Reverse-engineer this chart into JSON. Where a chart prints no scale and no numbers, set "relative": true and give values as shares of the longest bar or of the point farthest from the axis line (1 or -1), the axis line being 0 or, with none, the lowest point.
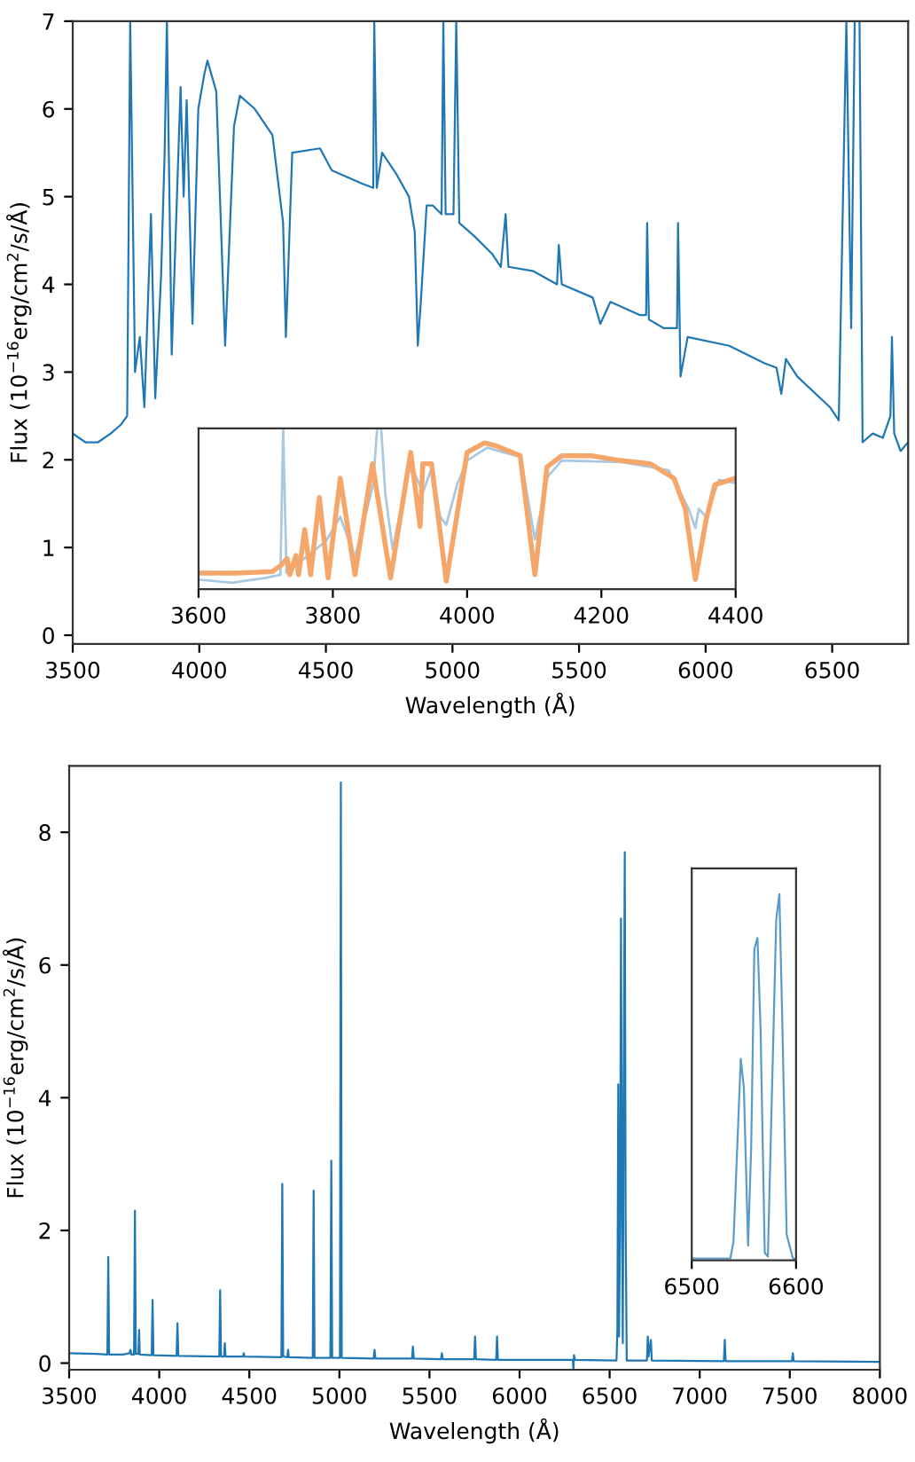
{
  "chart_data": [
    {
      "type": "line",
      "xlabel": "Wavelength (Å)",
      "ylabel": "Flux (10$^{−16}$erg/cm$^{2}$/s/Å)",
      "xlim": [
        3500,
        6800
      ],
      "ylim": [
        -0.1,
        7
      ],
      "xticks": [
        3500,
        4000,
        4500,
        5000,
        5500,
        6000,
        6500
      ],
      "yticks": [
        0,
        1,
        2,
        3,
        4,
        5,
        6,
        7
      ],
      "grid": false,
      "series": [
        {
          "color": "#1f77b4",
          "x": [
            3500,
            3550,
            3600,
            3650,
            3690,
            3715,
            3727,
            3746,
            3765,
            3783,
            3809,
            3826,
            3849,
            3863,
            3872,
            3891,
            3926,
            3938,
            3950,
            3973,
            3996,
            4020,
            4032,
            4067,
            4102,
            4137,
            4160,
            4219,
            4289,
            4331,
            4342,
            4367,
            4477,
            4523,
            4641,
            4687,
            4691,
            4701,
            4722,
            4780,
            4828,
            4851,
            4863,
            4875,
            4898,
            4922,
            4957,
            4964,
            4973,
            5004,
            5015,
            5027,
            5086,
            5156,
            5191,
            5210,
            5221,
            5320,
            5413,
            5420,
            5432,
            5554,
            5584,
            5624,
            5741,
            5765,
            5769,
            5776,
            5835,
            5887,
            5891,
            5901,
            5929,
            6093,
            6233,
            6280,
            6299,
            6317,
            6362,
            6491,
            6526,
            6556,
            6575,
            6589,
            6608,
            6620,
            6660,
            6700,
            6730,
            6736,
            6745,
            6770,
            6800
          ],
          "values": [
            2.3,
            2.2,
            2.2,
            2.3,
            2.4,
            2.5,
            7,
            3.0,
            3.4,
            2.6,
            4.8,
            2.7,
            4.1,
            5.5,
            7,
            3.2,
            6.25,
            5.0,
            6.1,
            3.55,
            6.0,
            6.4,
            6.55,
            6.2,
            3.3,
            5.8,
            6.15,
            6.0,
            5.7,
            4.7,
            3.4,
            5.5,
            5.55,
            5.3,
            5.15,
            5.1,
            7,
            5.1,
            5.5,
            5.25,
            5.0,
            4.6,
            3.3,
            3.8,
            4.9,
            4.9,
            4.8,
            7,
            4.8,
            4.8,
            7,
            4.7,
            4.55,
            4.35,
            4.2,
            4.8,
            4.2,
            4.15,
            4.0,
            4.45,
            4.0,
            3.85,
            3.55,
            3.8,
            3.65,
            3.65,
            4.7,
            3.6,
            3.5,
            3.5,
            4.7,
            2.95,
            3.4,
            3.3,
            3.1,
            3.05,
            2.75,
            3.15,
            2.95,
            2.6,
            2.45,
            7,
            3.5,
            7,
            7,
            2.2,
            2.3,
            2.25,
            2.5,
            3.4,
            2.3,
            2.1,
            2.2
          ]
        }
      ]
    },
    {
      "type": "line",
      "relative": true,
      "xlim": [
        3600,
        4400
      ],
      "xticks": [
        3600,
        3800,
        4000,
        4200,
        4400
      ],
      "tick_labels": "x",
      "grid": false,
      "series": [
        {
          "color": "#a9c9e2",
          "x": [
            3600,
            3650,
            3700,
            3722,
            3726,
            3731,
            3760,
            3790,
            3811,
            3833,
            3860,
            3866,
            3872,
            3878,
            3889,
            3916,
            3934,
            3947,
            3960,
            3969,
            3985,
            4000,
            4030,
            4080,
            4101,
            4120,
            4141,
            4230,
            4300,
            4330,
            4340,
            4345,
            4356,
            4375,
            4400
          ],
          "values": [
            0.06,
            0.04,
            0.07,
            0.09,
            1.0,
            0.1,
            0.2,
            0.3,
            0.45,
            0.2,
            0.65,
            1.0,
            1.0,
            0.6,
            0.25,
            0.78,
            0.6,
            0.75,
            0.45,
            0.4,
            0.65,
            0.8,
            0.88,
            0.82,
            0.31,
            0.7,
            0.8,
            0.79,
            0.74,
            0.5,
            0.38,
            0.5,
            0.45,
            0.68,
            0.66
          ]
        },
        {
          "color": "#f5a66a",
          "x": [
            3600,
            3657,
            3710,
            3723,
            3732,
            3736,
            3745,
            3749,
            3758,
            3767,
            3780,
            3793,
            3811,
            3833,
            3859,
            3886,
            3916,
            3930,
            3934,
            3947,
            3969,
            4000,
            4026,
            4044,
            4079,
            4101,
            4119,
            4141,
            4185,
            4229,
            4273,
            4308,
            4325,
            4340,
            4356,
            4369,
            4400
          ],
          "values": [
            0.1,
            0.1,
            0.11,
            0.15,
            0.19,
            0.09,
            0.21,
            0.09,
            0.37,
            0.09,
            0.57,
            0.07,
            0.69,
            0.09,
            0.78,
            0.07,
            0.85,
            0.39,
            0.78,
            0.78,
            0.05,
            0.85,
            0.91,
            0.89,
            0.83,
            0.09,
            0.76,
            0.83,
            0.83,
            0.8,
            0.78,
            0.69,
            0.5,
            0.06,
            0.43,
            0.65,
            0.69
          ]
        }
      ]
    },
    {
      "type": "line",
      "xlabel": "Wavelength (Å)",
      "ylabel": "Flux (10$^{−16}$erg/cm$^{2}$/s/Å)",
      "xlim": [
        3500,
        8000
      ],
      "ylim": [
        -0.1,
        9
      ],
      "xticks": [
        3500,
        4000,
        4500,
        5000,
        5500,
        6000,
        6500,
        7000,
        7500,
        8000
      ],
      "yticks": [
        0,
        2,
        4,
        6,
        8
      ],
      "grid": false,
      "series": [
        {
          "color": "#1f77b4",
          "x": [
            3500,
            3650,
            3712,
            3717,
            3722,
            3800,
            3835,
            3840,
            3845,
            3860,
            3865,
            3870,
            3884,
            3888,
            3892,
            3958,
            3963,
            3968,
            4096,
            4101,
            4106,
            4333,
            4338,
            4343,
            4360,
            4364,
            4368,
            4465,
            4469,
            4473,
            4678,
            4683,
            4688,
            4711,
            4715,
            4719,
            4852,
            4857,
            4862,
            4950,
            4955,
            4960,
            5003,
            5008,
            5013,
            5190,
            5195,
            5200,
            5403,
            5408,
            5413,
            5564,
            5569,
            5574,
            5748,
            5753,
            5758,
            5870,
            5875,
            5880,
            6296,
            6299,
            6302,
            6308,
            6538,
            6543,
            6548,
            6552,
            6558,
            6563,
            6568,
            6573,
            6578,
            6584,
            6589,
            6595,
            6707,
            6712,
            6716,
            6729,
            6734,
            7134,
            7139,
            7144,
            7512,
            7517,
            7522,
            8000
          ],
          "values": [
            0.15,
            0.14,
            0.13,
            1.6,
            0.13,
            0.13,
            0.15,
            0.2,
            0.13,
            0.13,
            2.3,
            0.14,
            0.14,
            0.5,
            0.13,
            0.12,
            0.95,
            0.12,
            0.11,
            0.6,
            0.11,
            0.1,
            1.1,
            0.1,
            0.1,
            0.3,
            0.1,
            0.1,
            0.15,
            0.1,
            0.09,
            2.7,
            0.1,
            0.09,
            0.2,
            0.09,
            0.08,
            2.6,
            0.08,
            0.08,
            3.05,
            0.08,
            0.08,
            8.75,
            0.08,
            0.07,
            0.2,
            0.07,
            0.07,
            0.25,
            0.07,
            0.06,
            0.15,
            0.06,
            0.06,
            0.4,
            0.06,
            0.05,
            0.4,
            0.05,
            0.05,
            -0.1,
            0.12,
            0.05,
            0.04,
            0.5,
            4.2,
            0.4,
            2.0,
            6.7,
            3.0,
            0.3,
            4.0,
            7.7,
            2.0,
            0.04,
            0.04,
            0.4,
            0.1,
            0.35,
            0.04,
            0.03,
            0.35,
            0.03,
            0.03,
            0.15,
            0.03,
            0.02
          ]
        }
      ]
    },
    {
      "type": "line",
      "relative": true,
      "xlim": [
        6500,
        6600
      ],
      "xticks": [
        6500,
        6600
      ],
      "tick_labels": "x",
      "grid": false,
      "series": [
        {
          "color": "#5b9bc9",
          "x": [
            6500,
            6537,
            6540,
            6547,
            6550,
            6554,
            6557,
            6560,
            6563,
            6566,
            6570,
            6573,
            6577,
            6581,
            6584,
            6587,
            6591,
            6597,
            6600
          ],
          "values": [
            0.005,
            0.005,
            0.05,
            0.55,
            0.47,
            0.04,
            0.31,
            0.85,
            0.88,
            0.63,
            0.02,
            0.01,
            0.47,
            0.93,
            1.0,
            0.63,
            0.07,
            0.005,
            0.003
          ]
        }
      ]
    }
  ]
}
